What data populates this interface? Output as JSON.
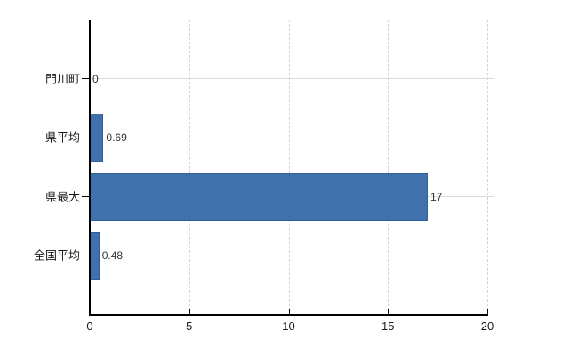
{
  "chart_data": {
    "type": "bar",
    "orientation": "horizontal",
    "title": "",
    "categories": [
      "門川町",
      "県平均",
      "県最大",
      "全国平均"
    ],
    "values": [
      0,
      0.69,
      17,
      0.48
    ],
    "value_labels": [
      "0",
      "0.69",
      "17",
      "0.48"
    ],
    "xlabel": "",
    "ylabel": "",
    "xlim": [
      0,
      20
    ],
    "xticks": [
      0,
      5,
      10,
      15,
      20
    ],
    "xtick_labels": [
      "0",
      "5",
      "10",
      "15",
      "20"
    ],
    "grid": {
      "vertical": "dashed",
      "horizontal": "solid",
      "top_border": "dashed",
      "legend_position": "none"
    },
    "colors": {
      "bar_fill": "#4171ad",
      "bar_border": "#30609c",
      "axis": "#000000",
      "grid_vertical": "#d4d4d4",
      "grid_horizontal": "#d9ded9",
      "category_text": "#1a1a1a",
      "value_text": "#333333",
      "background": "#ffffff"
    }
  }
}
